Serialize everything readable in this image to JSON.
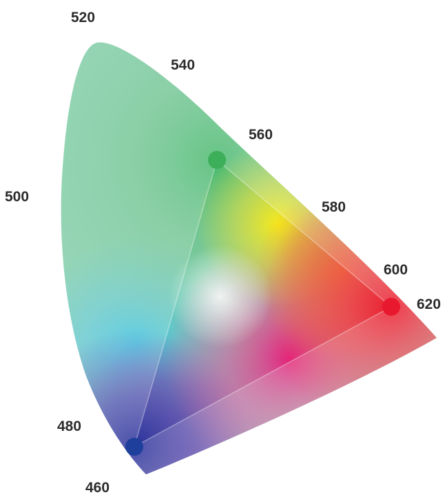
{
  "wavelength_labels": {
    "nm_460": "460",
    "nm_480": "480",
    "nm_500": "500",
    "nm_520": "520",
    "nm_540": "540",
    "nm_560": "560",
    "nm_580": "580",
    "nm_600": "600",
    "nm_620": "620"
  },
  "gamut_primaries": {
    "red": "#e8182f",
    "green": "#3dae5a",
    "blue": "#1f3f9c"
  },
  "colors": {
    "spectral_green": "#7fcfa6",
    "cyan": "#4cc6ea",
    "violet": "#6a4fb0",
    "magenta": "#e33f92",
    "red": "#ef3b4a",
    "yellow": "#f2e51c",
    "orange": "#f4a02a"
  }
}
